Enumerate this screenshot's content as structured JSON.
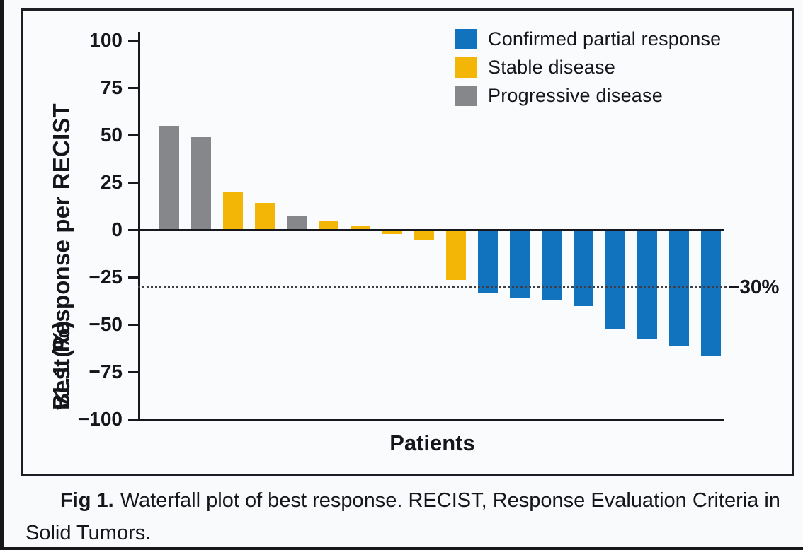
{
  "figure": {
    "caption": {
      "label": "Fig 1.",
      "text": "Waterfall plot of best response. RECIST, Response Evaluation Criteria in Solid Tumors."
    }
  },
  "chart_data": {
    "type": "bar",
    "title": "",
    "xlabel": "Patients",
    "ylabel": "Best Response per RECIST v1.1 (%)",
    "ylabel_line1": "Best Response per RECIST",
    "ylabel_line2": "v1.1 (%)",
    "ylim": [
      -100,
      100
    ],
    "yticks": [
      100,
      75,
      50,
      25,
      0,
      -25,
      -50,
      -75,
      -100
    ],
    "grid": false,
    "legend_position": "top-right",
    "threshold_line": {
      "value": -30,
      "label": "−30%",
      "style": "dotted"
    },
    "legend": [
      {
        "label": "Confirmed partial response",
        "color": "#1173BD"
      },
      {
        "label": "Stable disease",
        "color": "#F3B606"
      },
      {
        "label": "Progressive disease",
        "color": "#85878B"
      }
    ],
    "bars": [
      {
        "value": 55,
        "response": "Progressive disease",
        "color": "#85878B"
      },
      {
        "value": 49,
        "response": "Progressive disease",
        "color": "#85878B"
      },
      {
        "value": 20,
        "response": "Stable disease",
        "color": "#F3B606"
      },
      {
        "value": 14,
        "response": "Stable disease",
        "color": "#F3B606"
      },
      {
        "value": 7,
        "response": "Progressive disease",
        "color": "#85878B"
      },
      {
        "value": 5,
        "response": "Stable disease",
        "color": "#F3B606"
      },
      {
        "value": 2,
        "response": "Stable disease",
        "color": "#F3B606"
      },
      {
        "value": -2,
        "response": "Stable disease",
        "color": "#F3B606"
      },
      {
        "value": -5,
        "response": "Stable disease",
        "color": "#F3B606"
      },
      {
        "value": -26,
        "response": "Stable disease",
        "color": "#F3B606"
      },
      {
        "value": -33,
        "response": "Confirmed partial response",
        "color": "#1173BD"
      },
      {
        "value": -36,
        "response": "Confirmed partial response",
        "color": "#1173BD"
      },
      {
        "value": -37,
        "response": "Confirmed partial response",
        "color": "#1173BD"
      },
      {
        "value": -40,
        "response": "Confirmed partial response",
        "color": "#1173BD"
      },
      {
        "value": -52,
        "response": "Confirmed partial response",
        "color": "#1173BD"
      },
      {
        "value": -57,
        "response": "Confirmed partial response",
        "color": "#1173BD"
      },
      {
        "value": -61,
        "response": "Confirmed partial response",
        "color": "#1173BD"
      },
      {
        "value": -66,
        "response": "Confirmed partial response",
        "color": "#1173BD"
      }
    ]
  }
}
